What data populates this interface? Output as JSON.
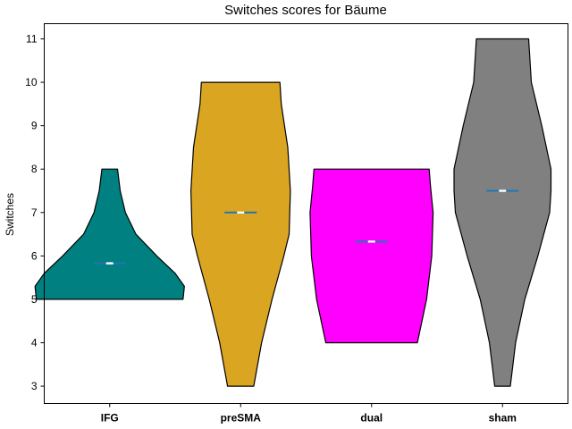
{
  "chart_data": {
    "type": "violin",
    "title": "Switches scores for Bäume",
    "xlabel": "",
    "ylabel": "Switches",
    "ylim": [
      2.6,
      11.35
    ],
    "yticks": [
      3,
      4,
      5,
      6,
      7,
      8,
      9,
      10,
      11
    ],
    "grid": false,
    "categories": [
      "IFG",
      "preSMA",
      "dual",
      "sham"
    ],
    "colors": [
      "#008080",
      "#DAA520",
      "#FF00FF",
      "#808080"
    ],
    "edge_color": "#000000",
    "mean_line_color": "#1f77b4",
    "median_marker_color": "#ffffff",
    "violins": [
      {
        "name": "IFG",
        "min": 5,
        "max": 8,
        "mean": 5.83,
        "profile": [
          [
            5.0,
            0.56
          ],
          [
            5.3,
            0.57
          ],
          [
            5.6,
            0.5
          ],
          [
            6.0,
            0.36
          ],
          [
            6.5,
            0.2
          ],
          [
            7.0,
            0.12
          ],
          [
            7.5,
            0.08
          ],
          [
            8.0,
            0.06
          ]
        ]
      },
      {
        "name": "preSMA",
        "min": 3,
        "max": 10,
        "mean": 7.0,
        "profile": [
          [
            3.0,
            0.1
          ],
          [
            4.0,
            0.16
          ],
          [
            5.0,
            0.24
          ],
          [
            6.0,
            0.33
          ],
          [
            6.5,
            0.37
          ],
          [
            7.5,
            0.38
          ],
          [
            8.5,
            0.36
          ],
          [
            9.5,
            0.31
          ],
          [
            10.0,
            0.3
          ]
        ]
      },
      {
        "name": "dual",
        "min": 4,
        "max": 8,
        "mean": 6.33,
        "profile": [
          [
            4.0,
            0.35
          ],
          [
            5.0,
            0.42
          ],
          [
            6.0,
            0.46
          ],
          [
            7.0,
            0.47
          ],
          [
            7.6,
            0.45
          ],
          [
            8.0,
            0.44
          ]
        ]
      },
      {
        "name": "sham",
        "min": 3,
        "max": 11,
        "mean": 7.5,
        "profile": [
          [
            3.0,
            0.06
          ],
          [
            4.0,
            0.1
          ],
          [
            5.0,
            0.17
          ],
          [
            6.0,
            0.27
          ],
          [
            7.0,
            0.36
          ],
          [
            7.5,
            0.37
          ],
          [
            8.0,
            0.37
          ],
          [
            9.0,
            0.3
          ],
          [
            10.0,
            0.22
          ],
          [
            11.0,
            0.2
          ]
        ]
      }
    ]
  }
}
